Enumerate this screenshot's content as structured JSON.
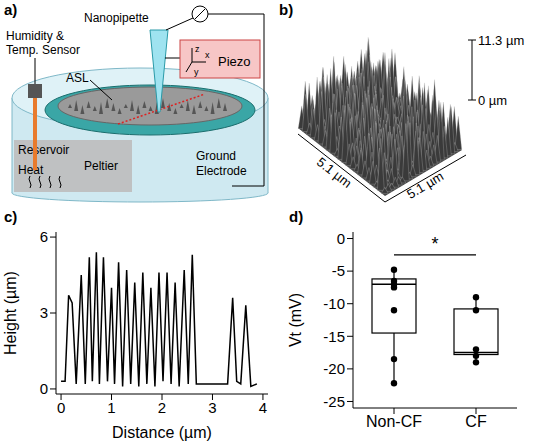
{
  "panel_labels": [
    "a)",
    "b)",
    "c)",
    "d)"
  ],
  "diagram": {
    "labels": {
      "nanopipette": "Nanopipette",
      "sensor": "Humidity & Temp. Sensor",
      "asl": "ASL",
      "piezo": "Piezo",
      "axes": [
        "z",
        "x",
        "y"
      ],
      "reservoir": "Reservoir",
      "heat": "Heat",
      "peltier": "Peltier",
      "ground": "Ground Electrode"
    }
  },
  "surface": {
    "z_labels": [
      {
        "value": 0,
        "label": "0 µm"
      },
      {
        "value": 11.3,
        "label": "11.3 µm"
      }
    ],
    "x_label": {
      "value": 5.1,
      "label": "5.1 µm"
    },
    "y_label": {
      "value": 5.1,
      "label": "5.1 µm"
    }
  },
  "chart_data": [
    {
      "type": "line",
      "xlabel": "Distance (µm)",
      "ylabel": "Height (µm)",
      "x": [
        0,
        0.08,
        0.15,
        0.22,
        0.3,
        0.4,
        0.48,
        0.56,
        0.62,
        0.7,
        0.76,
        0.84,
        0.92,
        1.0,
        1.06,
        1.14,
        1.22,
        1.3,
        1.38,
        1.46,
        1.54,
        1.62,
        1.7,
        1.78,
        1.86,
        1.94,
        2.02,
        2.1,
        2.18,
        2.26,
        2.34,
        2.44,
        2.52,
        2.6,
        2.68,
        3.3,
        3.4,
        3.48,
        3.56,
        3.66,
        3.76,
        3.88
      ],
      "values": [
        0.3,
        0.3,
        3.7,
        3.4,
        0.2,
        4.5,
        0.2,
        5.2,
        0.3,
        5.4,
        0.2,
        5.2,
        0.3,
        4.0,
        0.2,
        5.0,
        0.1,
        4.7,
        0.2,
        4.2,
        0.1,
        4.6,
        0.2,
        4.0,
        0.1,
        4.6,
        0.3,
        4.6,
        0.2,
        4.2,
        0.1,
        4.7,
        0.2,
        5.3,
        0.2,
        0.2,
        3.6,
        0.3,
        0.2,
        3.3,
        0.1,
        0.2
      ],
      "xlim": [
        -0.1,
        4.1
      ],
      "xticks": [
        0,
        1,
        2,
        3,
        4
      ],
      "ylim": [
        -0.2,
        6.2
      ],
      "yticks": [
        0,
        3,
        6
      ],
      "color": "#000000"
    },
    {
      "type": "box",
      "ylabel": "Vt (mV)",
      "categories": [
        "Non-CF",
        "CF"
      ],
      "boxes": [
        {
          "whisker_low": -22.2,
          "q1": -14.5,
          "median": -7.0,
          "q3": -6.2,
          "whisker_high": -4.6,
          "points": [
            -4.8,
            -6.5,
            -7.0,
            -7.5,
            -11.0,
            -18.5,
            -22.2
          ]
        },
        {
          "whisker_low": -19.0,
          "q1": -17.8,
          "median": -17.5,
          "q3": -10.8,
          "whisker_high": -9.0,
          "points": [
            -9.0,
            -11.0,
            -17.0,
            -18.0,
            -19.0
          ]
        }
      ],
      "ylim": [
        -26,
        1
      ],
      "yticks": [
        0,
        -5,
        -10,
        -15,
        -20,
        -25
      ],
      "significance": {
        "label": "*",
        "groups": [
          "Non-CF",
          "CF"
        ]
      },
      "color": "#000000"
    }
  ]
}
